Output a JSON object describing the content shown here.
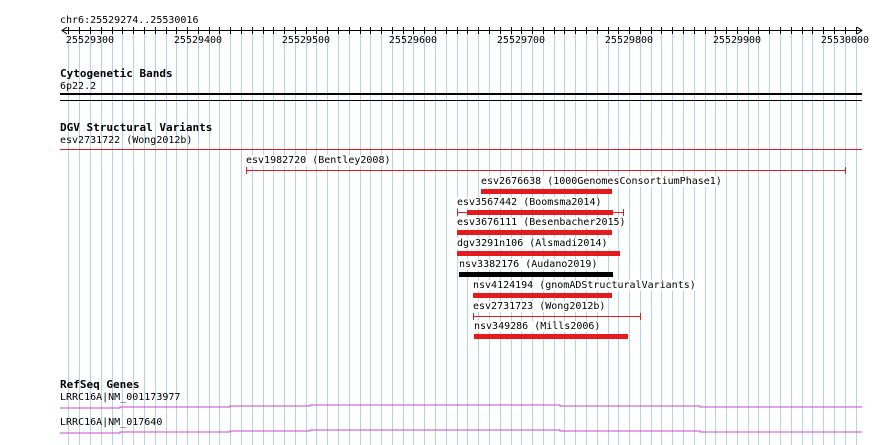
{
  "locus": "chr6:25529274..25530016",
  "ruler": {
    "start": 25529274,
    "end": 25530016,
    "ticks": [
      "25529300",
      "25529400",
      "25529500",
      "25529600",
      "25529700",
      "25529800",
      "25529900",
      "25530000"
    ]
  },
  "tracks": {
    "cytoband": {
      "title": "Cytogenetic Bands",
      "band": "6p22.2"
    },
    "dgv": {
      "title": "DGV Structural Variants",
      "top_label": "esv2731722 (Wong2012b)",
      "features": [
        {
          "id": "esv1982720",
          "source": "Bentley2008",
          "label": "esv1982720 (Bentley2008)",
          "start": 25529445,
          "end": 25530000,
          "style": "thin",
          "color": "#e41a1c"
        },
        {
          "id": "esv2676638",
          "source": "1000GenomesConsortiumPhase1",
          "label": "esv2676638 (1000GenomesConsortiumPhase1)",
          "start": 25529663,
          "end": 25529784,
          "style": "thick",
          "color": "#e41a1c"
        },
        {
          "id": "esv3567442",
          "source": "Boomsma2014",
          "label": "esv3567442 (Boomsma2014)",
          "start": 25529640,
          "end": 25529794,
          "style": "thin-thick",
          "color": "#e41a1c"
        },
        {
          "id": "esv3676111",
          "source": "Besenbacher2015",
          "label": "esv3676111 (Besenbacher2015)",
          "start": 25529640,
          "end": 25529784,
          "style": "thick",
          "color": "#e41a1c"
        },
        {
          "id": "dgv3291n106",
          "source": "Alsmadi2014",
          "label": "dgv3291n106 (Alsmadi2014)",
          "start": 25529640,
          "end": 25529792,
          "style": "thick",
          "color": "#e41a1c"
        },
        {
          "id": "nsv3382176",
          "source": "Audano2019",
          "label": "nsv3382176 (Audano2019)",
          "start": 25529642,
          "end": 25529785,
          "style": "thick",
          "color": "#000000"
        },
        {
          "id": "nsv4124194",
          "source": "gnomADStructuralVariants",
          "label": "nsv4124194 (gnomADStructuralVariants)",
          "start": 25529655,
          "end": 25529784,
          "style": "thick",
          "color": "#e41a1c"
        },
        {
          "id": "esv2731723",
          "source": "Wong2012b",
          "label": "esv2731723 (Wong2012b)",
          "start": 25529655,
          "end": 25529810,
          "style": "thin",
          "color": "#e41a1c"
        },
        {
          "id": "nsv349286",
          "source": "Mills2006",
          "label": "nsv349286 (Mills2006)",
          "start": 25529656,
          "end": 25529799,
          "style": "thick",
          "color": "#e41a1c"
        }
      ]
    },
    "refseq": {
      "title": "RefSeq Genes",
      "genes": [
        "LRRC16A|NM_001173977",
        "LRRC16A|NM_017640"
      ]
    }
  },
  "colors": {
    "grid": "#b0d4e8",
    "variant": "#e41a1c",
    "gene": "#cc44cc"
  }
}
